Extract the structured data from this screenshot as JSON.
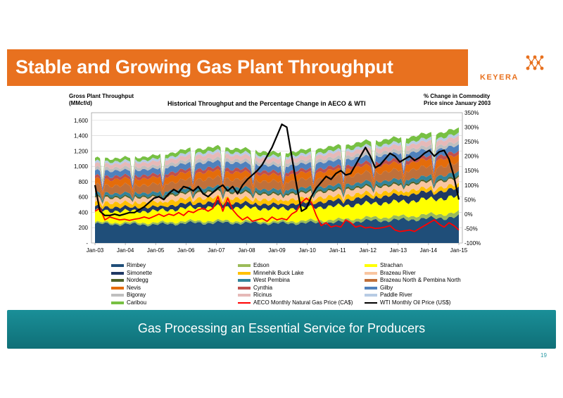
{
  "header": {
    "title": "Stable and Growing Gas Plant Throughput",
    "logo_text": "KEYERA"
  },
  "captions": {
    "left_axis_line1": "Gross Plant Throughput",
    "left_axis_line2": "(MMcf/d)",
    "right_axis_line1": "% Change in Commodity",
    "right_axis_line2": "Price since January 2003"
  },
  "banner": {
    "text": "Gas Processing an Essential Service for Producers"
  },
  "page_number": "19",
  "colors": {
    "brand_orange": "#e8711f",
    "banner_teal": "#138089"
  },
  "chart_data": {
    "type": "area",
    "title": "Historical Throughput and the Percentage Change in AECO & WTI",
    "x_ticks": [
      "Jan-03",
      "Jan-04",
      "Jan-05",
      "Jan-06",
      "Jan-07",
      "Jan-08",
      "Jan-09",
      "Jan-10",
      "Jan-11",
      "Jan-12",
      "Jan-13",
      "Jan-14",
      "Jan-15"
    ],
    "y_left_ticks": [
      "-",
      "200",
      "400",
      "600",
      "800",
      "1,000",
      "1,200",
      "1,400",
      "1,600"
    ],
    "y_left_range": [
      0,
      1700
    ],
    "y_right_ticks": [
      "-100%",
      "-50%",
      "0%",
      "50%",
      "100%",
      "150%",
      "200%",
      "250%",
      "300%",
      "350%"
    ],
    "y_right_range": [
      -100,
      350
    ],
    "grid": true,
    "legend_position": "bottom",
    "stack_x": [
      "Jan-03",
      "Jan-04",
      "Jan-05",
      "Jan-06",
      "Jan-07",
      "Jan-08",
      "Jan-09",
      "Jan-10",
      "Jan-11",
      "Jan-12",
      "Jan-13",
      "Jan-14",
      "Jan-15"
    ],
    "series": [
      {
        "name": "Rimbey",
        "color": "#1f4e79",
        "values": [
          250,
          245,
          240,
          260,
          265,
          260,
          255,
          262,
          270,
          290,
          300,
          320,
          340
        ]
      },
      {
        "name": "Edson",
        "color": "#9bbb59",
        "values": [
          20,
          22,
          24,
          25,
          26,
          25,
          24,
          30,
          35,
          40,
          45,
          50,
          55
        ]
      },
      {
        "name": "Strachan",
        "color": "#ffff00",
        "values": [
          150,
          150,
          152,
          170,
          180,
          175,
          165,
          170,
          175,
          185,
          190,
          200,
          210
        ]
      },
      {
        "name": "Simonette",
        "color": "#1f3864",
        "values": [
          50,
          52,
          55,
          60,
          62,
          60,
          58,
          65,
          75,
          85,
          90,
          95,
          100
        ]
      },
      {
        "name": "Minnehik Buck Lake",
        "color": "#ffc000",
        "values": [
          60,
          60,
          62,
          65,
          64,
          62,
          60,
          60,
          58,
          56,
          54,
          52,
          50
        ]
      },
      {
        "name": "Brazeau River",
        "color": "#f9c5a0",
        "values": [
          60,
          62,
          65,
          68,
          70,
          70,
          66,
          70,
          72,
          74,
          76,
          78,
          80
        ]
      },
      {
        "name": "Nordegg",
        "color": "#4f6228",
        "values": [
          20,
          20,
          20,
          22,
          22,
          22,
          21,
          21,
          22,
          22,
          22,
          22,
          22
        ]
      },
      {
        "name": "West Pembina",
        "color": "#31849b",
        "values": [
          40,
          40,
          42,
          45,
          46,
          45,
          44,
          45,
          46,
          48,
          50,
          52,
          54
        ]
      },
      {
        "name": "Brazeau North & Pembina North",
        "color": "#c0703a",
        "values": [
          100,
          102,
          105,
          110,
          112,
          110,
          105,
          108,
          112,
          115,
          118,
          120,
          122
        ]
      },
      {
        "name": "Nevis",
        "color": "#e46c0a",
        "values": [
          80,
          82,
          85,
          88,
          90,
          88,
          84,
          86,
          88,
          90,
          92,
          94,
          96
        ]
      },
      {
        "name": "Cynthia",
        "color": "#c0504d",
        "values": [
          40,
          40,
          42,
          44,
          45,
          44,
          42,
          43,
          44,
          45,
          46,
          47,
          48
        ]
      },
      {
        "name": "Gilby",
        "color": "#4f81bd",
        "values": [
          70,
          72,
          75,
          78,
          80,
          78,
          75,
          76,
          78,
          80,
          82,
          84,
          86
        ]
      },
      {
        "name": "Bigoray",
        "color": "#bfbfbf",
        "values": [
          40,
          40,
          41,
          43,
          44,
          43,
          41,
          42,
          43,
          44,
          45,
          46,
          47
        ]
      },
      {
        "name": "Ricinus",
        "color": "#e6b9b8",
        "values": [
          50,
          52,
          55,
          58,
          60,
          58,
          55,
          56,
          58,
          60,
          62,
          64,
          66
        ]
      },
      {
        "name": "Paddle River",
        "color": "#b8cce4",
        "values": [
          30,
          30,
          31,
          33,
          34,
          33,
          31,
          32,
          33,
          34,
          35,
          36,
          37
        ]
      },
      {
        "name": "Caribou",
        "color": "#77c043",
        "values": [
          40,
          42,
          45,
          50,
          52,
          50,
          48,
          50,
          55,
          60,
          62,
          65,
          68
        ]
      }
    ],
    "line_series": [
      {
        "name": "AECO Monthly Natural Gas Price (CA$)",
        "color": "#ff0000",
        "axis": "right",
        "x": [
          0,
          2,
          4,
          6,
          8,
          10,
          12,
          14,
          16,
          18,
          20,
          22,
          24,
          26,
          28,
          30,
          32,
          34,
          36,
          38,
          40,
          42,
          44,
          46,
          48,
          50,
          52,
          54,
          56,
          58,
          60,
          62,
          64,
          66,
          68,
          70,
          72,
          74,
          76,
          78,
          80,
          82,
          84,
          86,
          88,
          90,
          92,
          94,
          96,
          98,
          100,
          102,
          104,
          106,
          108,
          110,
          112,
          114,
          116,
          118,
          120,
          122,
          124,
          126,
          128,
          130,
          132,
          134,
          136,
          138,
          140,
          142,
          144,
          146,
          148
        ],
        "values": [
          10,
          20,
          -20,
          -10,
          -15,
          -20,
          -18,
          -22,
          -18,
          -15,
          -10,
          -15,
          -8,
          0,
          -8,
          0,
          -5,
          5,
          -5,
          10,
          5,
          15,
          20,
          10,
          20,
          60,
          10,
          55,
          15,
          -5,
          -20,
          -10,
          -25,
          -20,
          -15,
          -25,
          -10,
          -20,
          -15,
          -20,
          0,
          10,
          40,
          55,
          40,
          -5,
          -40,
          -30,
          -45,
          -40,
          -45,
          -20,
          -30,
          -45,
          -40,
          -48,
          -45,
          -50,
          -48,
          -45,
          -40,
          -55,
          -60,
          -58,
          -55,
          -60,
          -50,
          -40,
          -30,
          -20,
          -35,
          -45,
          -30,
          -40,
          -55
        ]
      },
      {
        "name": "WTI Monthly Oil Price (US$)",
        "color": "#000000",
        "axis": "right",
        "x": [
          0,
          2,
          4,
          6,
          8,
          10,
          12,
          14,
          16,
          18,
          20,
          22,
          24,
          26,
          28,
          30,
          32,
          34,
          36,
          38,
          40,
          42,
          44,
          46,
          48,
          50,
          52,
          54,
          56,
          58,
          60,
          62,
          64,
          66,
          68,
          70,
          72,
          74,
          76,
          78,
          80,
          82,
          84,
          86,
          88,
          90,
          92,
          94,
          96,
          98,
          100,
          102,
          104,
          106,
          108,
          110,
          112,
          114,
          116,
          118,
          120,
          122,
          124,
          126,
          128,
          130,
          132,
          134,
          136,
          138,
          140,
          142,
          144,
          146,
          148
        ],
        "values": [
          100,
          10,
          -5,
          -5,
          0,
          -5,
          0,
          5,
          5,
          15,
          25,
          40,
          55,
          60,
          50,
          70,
          85,
          75,
          95,
          90,
          80,
          95,
          70,
          60,
          75,
          90,
          100,
          80,
          95,
          70,
          100,
          120,
          135,
          150,
          170,
          200,
          230,
          270,
          310,
          300,
          200,
          100,
          10,
          20,
          60,
          90,
          110,
          130,
          120,
          140,
          150,
          135,
          140,
          170,
          200,
          230,
          200,
          160,
          170,
          190,
          210,
          200,
          180,
          190,
          200,
          185,
          195,
          210,
          220,
          200,
          215,
          220,
          190,
          130,
          50
        ]
      }
    ]
  },
  "legend": [
    {
      "label": "Rimbey",
      "color": "#1f4e79",
      "kind": "area"
    },
    {
      "label": "Edson",
      "color": "#9bbb59",
      "kind": "area"
    },
    {
      "label": "Strachan",
      "color": "#ffff00",
      "kind": "area"
    },
    {
      "label": "Simonette",
      "color": "#1f3864",
      "kind": "area"
    },
    {
      "label": "Minnehik Buck Lake",
      "color": "#ffc000",
      "kind": "area"
    },
    {
      "label": "Brazeau River",
      "color": "#f9c5a0",
      "kind": "area"
    },
    {
      "label": "Nordegg",
      "color": "#4f6228",
      "kind": "area"
    },
    {
      "label": "West Pembina",
      "color": "#31849b",
      "kind": "area"
    },
    {
      "label": "Brazeau North & Pembina North",
      "color": "#c0703a",
      "kind": "area"
    },
    {
      "label": "Nevis",
      "color": "#e46c0a",
      "kind": "area"
    },
    {
      "label": "Cynthia",
      "color": "#c0504d",
      "kind": "area"
    },
    {
      "label": "Gilby",
      "color": "#4f81bd",
      "kind": "area"
    },
    {
      "label": "Bigoray",
      "color": "#bfbfbf",
      "kind": "area"
    },
    {
      "label": "Ricinus",
      "color": "#e6b9b8",
      "kind": "area"
    },
    {
      "label": "Paddle River",
      "color": "#b8cce4",
      "kind": "area"
    },
    {
      "label": "Caribou",
      "color": "#77c043",
      "kind": "area"
    },
    {
      "label": "AECO Monthly Natural Gas Price (CA$)",
      "color": "#ff0000",
      "kind": "line"
    },
    {
      "label": "WTI Monthly Oil Price (US$)",
      "color": "#000000",
      "kind": "line"
    }
  ]
}
